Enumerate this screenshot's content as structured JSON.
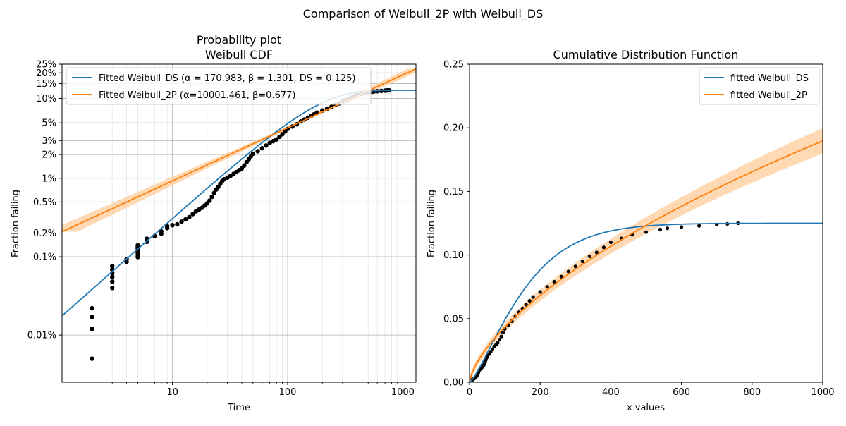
{
  "figure": {
    "suptitle": "Comparison of Weibull_2P with Weibull_DS"
  },
  "colors": {
    "ds": "#1f77b4",
    "wb2p": "#ff7f0e",
    "band": "#ffcc99",
    "points": "#000000",
    "grid_major": "#b0b0b0",
    "grid_minor": "#e6e6e6"
  },
  "chart_data": [
    {
      "type": "scatter",
      "title_line1": "Probability plot",
      "title_line2": "Weibull CDF",
      "xlabel": "Time",
      "ylabel": "Fraction failing",
      "x_scale": "log",
      "y_scale": "weibull",
      "xlim": [
        1.1,
        1300
      ],
      "ylim": [
        2.5e-05,
        0.25
      ],
      "x_tick_labels": [
        {
          "value": 10,
          "label": "10"
        },
        {
          "value": 100,
          "label": "100"
        },
        {
          "value": 1000,
          "label": "1000"
        }
      ],
      "y_tick_labels": [
        {
          "value": 0.0001,
          "label": "0.01%"
        },
        {
          "value": 0.001,
          "label": "0.1%"
        },
        {
          "value": 0.002,
          "label": "0.2%"
        },
        {
          "value": 0.005,
          "label": "0.5%"
        },
        {
          "value": 0.01,
          "label": "1%"
        },
        {
          "value": 0.02,
          "label": "2%"
        },
        {
          "value": 0.03,
          "label": "3%"
        },
        {
          "value": 0.05,
          "label": "5%"
        },
        {
          "value": 0.1,
          "label": "10%"
        },
        {
          "value": 0.15,
          "label": "15%"
        },
        {
          "value": 0.2,
          "label": "20%"
        },
        {
          "value": 0.25,
          "label": "25%"
        }
      ],
      "grid": true,
      "legend_position": "top-left",
      "legend": [
        {
          "label": "Fitted Weibull_DS (α = 170.983, β = 1.301, DS = 0.125)",
          "color": "#1f77b4"
        },
        {
          "label": "Fitted Weibull_2P (α=10001.461, β=0.677)",
          "color": "#ff7f0e"
        }
      ],
      "series": [
        {
          "kind": "line",
          "model": "weibull_ds",
          "alpha": 170.983,
          "beta": 1.301,
          "ds": 0.125
        },
        {
          "kind": "line",
          "model": "weibull_2p",
          "alpha": 10001.461,
          "beta": 0.677
        }
      ],
      "points": [
        [
          2,
          5e-05
        ],
        [
          2,
          0.00012
        ],
        [
          2,
          0.00017
        ],
        [
          2,
          0.00022
        ],
        [
          3,
          0.0004
        ],
        [
          3,
          0.00048
        ],
        [
          3,
          0.00055
        ],
        [
          3,
          0.00062
        ],
        [
          3,
          0.00069
        ],
        [
          3,
          0.00076
        ],
        [
          4,
          0.00086
        ],
        [
          4,
          0.00093
        ],
        [
          5,
          0.00099
        ],
        [
          5,
          0.00106
        ],
        [
          5,
          0.00113
        ],
        [
          5,
          0.0012
        ],
        [
          5,
          0.00127
        ],
        [
          5,
          0.00134
        ],
        [
          5,
          0.0014
        ],
        [
          6,
          0.00155
        ],
        [
          6,
          0.00162
        ],
        [
          6,
          0.0017
        ],
        [
          7,
          0.00184
        ],
        [
          8,
          0.00197
        ],
        [
          8,
          0.00211
        ],
        [
          9,
          0.00232
        ],
        [
          9,
          0.00246
        ],
        [
          10,
          0.00253
        ],
        [
          11,
          0.0026
        ],
        [
          12,
          0.0028
        ],
        [
          13,
          0.003
        ],
        [
          14,
          0.0032
        ],
        [
          15,
          0.0035
        ],
        [
          16,
          0.0038
        ],
        [
          17,
          0.004
        ],
        [
          18,
          0.0042
        ],
        [
          19,
          0.0045
        ],
        [
          20,
          0.0048
        ],
        [
          21,
          0.0052
        ],
        [
          22,
          0.0058
        ],
        [
          23,
          0.0065
        ],
        [
          24,
          0.0072
        ],
        [
          25,
          0.0078
        ],
        [
          26,
          0.0085
        ],
        [
          27,
          0.0092
        ],
        [
          28,
          0.0097
        ],
        [
          30,
          0.0102
        ],
        [
          32,
          0.0108
        ],
        [
          34,
          0.0114
        ],
        [
          36,
          0.012
        ],
        [
          38,
          0.0127
        ],
        [
          40,
          0.0133
        ],
        [
          42,
          0.0145
        ],
        [
          44,
          0.016
        ],
        [
          46,
          0.0175
        ],
        [
          48,
          0.019
        ],
        [
          50,
          0.0205
        ],
        [
          55,
          0.022
        ],
        [
          60,
          0.024
        ],
        [
          65,
          0.026
        ],
        [
          70,
          0.028
        ],
        [
          75,
          0.0295
        ],
        [
          80,
          0.031
        ],
        [
          85,
          0.0335
        ],
        [
          90,
          0.036
        ],
        [
          95,
          0.039
        ],
        [
          100,
          0.042
        ],
        [
          110,
          0.045
        ],
        [
          120,
          0.048
        ],
        [
          130,
          0.052
        ],
        [
          140,
          0.055
        ],
        [
          150,
          0.058
        ],
        [
          160,
          0.061
        ],
        [
          170,
          0.064
        ],
        [
          180,
          0.067
        ],
        [
          200,
          0.071
        ],
        [
          220,
          0.075
        ],
        [
          240,
          0.079
        ],
        [
          260,
          0.083
        ],
        [
          280,
          0.087
        ],
        [
          300,
          0.091
        ],
        [
          320,
          0.095
        ],
        [
          340,
          0.099
        ],
        [
          360,
          0.102
        ],
        [
          380,
          0.106
        ],
        [
          400,
          0.11
        ],
        [
          430,
          0.113
        ],
        [
          460,
          0.116
        ],
        [
          500,
          0.118
        ],
        [
          540,
          0.12
        ],
        [
          560,
          0.121
        ],
        [
          600,
          0.122
        ],
        [
          650,
          0.123
        ],
        [
          700,
          0.124
        ],
        [
          730,
          0.1245
        ],
        [
          760,
          0.125
        ]
      ]
    },
    {
      "type": "line",
      "title": "Cumulative Distribution Function",
      "xlabel": "x values",
      "ylabel": "Fraction failing",
      "xlim": [
        0,
        1000
      ],
      "ylim": [
        0,
        0.25
      ],
      "x_ticks": [
        0,
        200,
        400,
        600,
        800,
        1000
      ],
      "y_ticks": [
        0.0,
        0.05,
        0.1,
        0.15,
        0.2,
        0.25
      ],
      "x_tick_labels": [
        "0",
        "200",
        "400",
        "600",
        "800",
        "1000"
      ],
      "y_tick_labels": [
        "0.00",
        "0.05",
        "0.10",
        "0.15",
        "0.20",
        "0.25"
      ],
      "grid": false,
      "legend_position": "top-right",
      "legend": [
        {
          "label": "fitted Weibull_DS",
          "color": "#1f77b4"
        },
        {
          "label": "fitted Weibull_2P",
          "color": "#ff7f0e"
        }
      ],
      "series": [
        {
          "kind": "line",
          "model": "weibull_ds",
          "alpha": 170.983,
          "beta": 1.301,
          "ds": 0.125
        },
        {
          "kind": "line",
          "model": "weibull_2p",
          "alpha": 10001.461,
          "beta": 0.677
        }
      ]
    }
  ]
}
